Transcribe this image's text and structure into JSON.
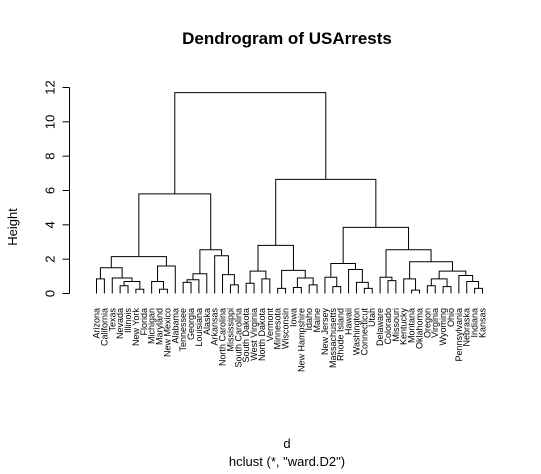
{
  "chart_data": {
    "type": "dendrogram",
    "title": "Dendrogram of USArrests",
    "xlabel": "d",
    "sublabel": "hclust (*, \"ward.D2\")",
    "ylabel": "Height",
    "ylim": [
      0,
      12
    ],
    "yticks": [
      0,
      2,
      4,
      6,
      8,
      10,
      12
    ],
    "grid": false,
    "leaves": [
      "Arizona",
      "California",
      "Texas",
      "Nevada",
      "Illinois",
      "New York",
      "Florida",
      "Michigan",
      "Maryland",
      "New Mexico",
      "Alabama",
      "Tennessee",
      "Georgia",
      "Louisiana",
      "Alaska",
      "Arkansas",
      "North Carolina",
      "Mississippi",
      "South Carolina",
      "South Dakota",
      "West Virginia",
      "North Dakota",
      "Vermont",
      "Minnesota",
      "Wisconsin",
      "Iowa",
      "New Hampshire",
      "Idaho",
      "Maine",
      "New Jersey",
      "Massachusetts",
      "Rhode Island",
      "Hawaii",
      "Washington",
      "Connecticut",
      "Utah",
      "Delaware",
      "Colorado",
      "Missouri",
      "Kentucky",
      "Montana",
      "Oklahoma",
      "Oregon",
      "Virginia",
      "Wyoming",
      "Ohio",
      "Pennsylvania",
      "Nebraska",
      "Indiana",
      "Kansas"
    ],
    "merges": [
      {
        "left": "L0",
        "right": "L1",
        "height": 0.85
      },
      {
        "left": "L3",
        "right": "L4",
        "height": 0.45
      },
      {
        "left": "L5",
        "right": "L6",
        "height": 0.25
      },
      {
        "left": "m1",
        "right": "m2",
        "height": 0.7
      },
      {
        "left": "L2",
        "right": "m3",
        "height": 0.9
      },
      {
        "left": "m0",
        "right": "m4",
        "height": 1.5
      },
      {
        "left": "L8",
        "right": "L9",
        "height": 0.25
      },
      {
        "left": "m6",
        "right": "L7",
        "height": 0.7
      },
      {
        "left": "m7",
        "right": "L10",
        "height": 1.6
      },
      {
        "left": "m5",
        "right": "m8",
        "height": 2.15
      },
      {
        "left": "L11",
        "right": "L12",
        "height": 0.65
      },
      {
        "left": "L13",
        "right": "m10",
        "height": 0.8
      },
      {
        "left": "L14",
        "right": "m11",
        "height": 1.15
      },
      {
        "left": "L17",
        "right": "L18",
        "height": 0.5
      },
      {
        "left": "L16",
        "right": "m13",
        "height": 1.1
      },
      {
        "left": "L15",
        "right": "m14",
        "height": 2.2
      },
      {
        "left": "m12",
        "right": "m15",
        "height": 2.55
      },
      {
        "left": "m9",
        "right": "m16",
        "height": 5.8
      },
      {
        "left": "L19",
        "right": "L20",
        "height": 0.6
      },
      {
        "left": "L21",
        "right": "L22",
        "height": 0.85
      },
      {
        "left": "m18",
        "right": "m19",
        "height": 1.3
      },
      {
        "left": "L23",
        "right": "L24",
        "height": 0.3
      },
      {
        "left": "L25",
        "right": "L26",
        "height": 0.35
      },
      {
        "left": "L27",
        "right": "L28",
        "height": 0.5
      },
      {
        "left": "m22",
        "right": "m23",
        "height": 0.9
      },
      {
        "left": "m21",
        "right": "m24",
        "height": 1.35
      },
      {
        "left": "m20",
        "right": "m25",
        "height": 2.8
      },
      {
        "left": "L30",
        "right": "L31",
        "height": 0.4
      },
      {
        "left": "L29",
        "right": "m27",
        "height": 0.95
      },
      {
        "left": "L34",
        "right": "L35",
        "height": 0.3
      },
      {
        "left": "L33",
        "right": "m29",
        "height": 0.65
      },
      {
        "left": "L32",
        "right": "m30",
        "height": 1.4
      },
      {
        "left": "m28",
        "right": "m31",
        "height": 1.75
      },
      {
        "left": "L37",
        "right": "L38",
        "height": 0.75
      },
      {
        "left": "L36",
        "right": "m33",
        "height": 0.95
      },
      {
        "left": "L40",
        "right": "L41",
        "height": 0.2
      },
      {
        "left": "L39",
        "right": "m35",
        "height": 0.85
      },
      {
        "left": "L42",
        "right": "L43",
        "height": 0.45
      },
      {
        "left": "L44",
        "right": "L45",
        "height": 0.4
      },
      {
        "left": "m37",
        "right": "m38",
        "height": 0.85
      },
      {
        "left": "L48",
        "right": "L49",
        "height": 0.3
      },
      {
        "left": "L47",
        "right": "m40",
        "height": 0.7
      },
      {
        "left": "L46",
        "right": "m41",
        "height": 1.05
      },
      {
        "left": "m39",
        "right": "m42",
        "height": 1.3
      },
      {
        "left": "m36",
        "right": "m43",
        "height": 1.85
      },
      {
        "left": "m34",
        "right": "m44",
        "height": 2.55
      },
      {
        "left": "m32",
        "right": "m45",
        "height": 3.85
      },
      {
        "left": "m26",
        "right": "m46",
        "height": 6.65
      },
      {
        "left": "m17",
        "right": "m47",
        "height": 11.7
      }
    ]
  }
}
